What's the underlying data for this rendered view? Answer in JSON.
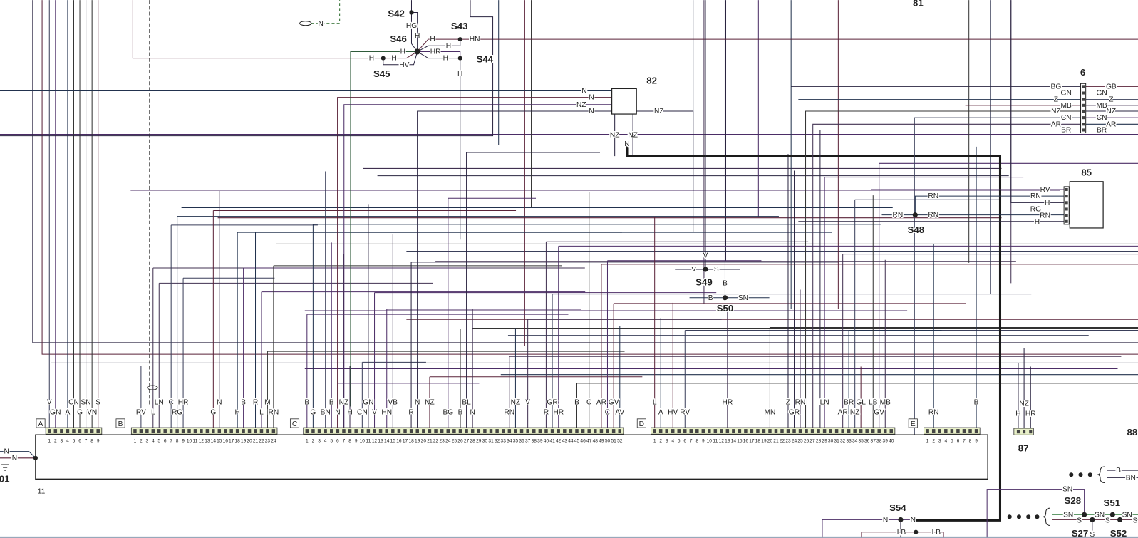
{
  "diagram": {
    "module_label": "11",
    "left_ref": "01",
    "top_ref": "81",
    "right_ref": "88",
    "left_wires": [
      "N",
      "N"
    ],
    "loop_wire": "N"
  },
  "connectors": [
    {
      "id": "A",
      "pin_count": 9,
      "wires": [
        {
          "pin": 1,
          "code": "V"
        },
        {
          "pin": 2,
          "code": "GN"
        },
        {
          "pin": 4,
          "code": "A"
        },
        {
          "pin": 5,
          "code": "CN"
        },
        {
          "pin": 6,
          "code": "G"
        },
        {
          "pin": 7,
          "code": "SN"
        },
        {
          "pin": 8,
          "code": "VN"
        },
        {
          "pin": 9,
          "code": "S"
        }
      ]
    },
    {
      "id": "B",
      "pin_count": 24,
      "wires": [
        {
          "pin": 2,
          "code": "RV"
        },
        {
          "pin": 4,
          "code": "L"
        },
        {
          "pin": 5,
          "code": "LN"
        },
        {
          "pin": 7,
          "code": "C"
        },
        {
          "pin": 8,
          "code": "RG"
        },
        {
          "pin": 9,
          "code": "HR"
        },
        {
          "pin": 14,
          "code": "G"
        },
        {
          "pin": 15,
          "code": "N"
        },
        {
          "pin": 18,
          "code": "H"
        },
        {
          "pin": 19,
          "code": "B"
        },
        {
          "pin": 21,
          "code": "R"
        },
        {
          "pin": 22,
          "code": "L"
        },
        {
          "pin": 23,
          "code": "M"
        },
        {
          "pin": 24,
          "code": "RN"
        }
      ]
    },
    {
      "id": "C",
      "pin_count": 52,
      "wires": [
        {
          "pin": 1,
          "code": "B"
        },
        {
          "pin": 2,
          "code": "G"
        },
        {
          "pin": 4,
          "code": "BN"
        },
        {
          "pin": 5,
          "code": "B"
        },
        {
          "pin": 6,
          "code": "N"
        },
        {
          "pin": 7,
          "code": "NZ"
        },
        {
          "pin": 8,
          "code": "H"
        },
        {
          "pin": 10,
          "code": "CN"
        },
        {
          "pin": 11,
          "code": "GN"
        },
        {
          "pin": 12,
          "code": "V"
        },
        {
          "pin": 14,
          "code": "HN"
        },
        {
          "pin": 15,
          "code": "VB"
        },
        {
          "pin": 18,
          "code": "R"
        },
        {
          "pin": 19,
          "code": "N"
        },
        {
          "pin": 21,
          "code": "NZ"
        },
        {
          "pin": 24,
          "code": "BG"
        },
        {
          "pin": 26,
          "code": "B"
        },
        {
          "pin": 27,
          "code": "BL"
        },
        {
          "pin": 28,
          "code": "N"
        },
        {
          "pin": 34,
          "code": "RN"
        },
        {
          "pin": 35,
          "code": "NZ"
        },
        {
          "pin": 37,
          "code": "V"
        },
        {
          "pin": 40,
          "code": "R"
        },
        {
          "pin": 41,
          "code": "GR"
        },
        {
          "pin": 42,
          "code": "HR"
        },
        {
          "pin": 45,
          "code": "B"
        },
        {
          "pin": 47,
          "code": "C"
        },
        {
          "pin": 49,
          "code": "AR"
        },
        {
          "pin": 50,
          "code": "C"
        },
        {
          "pin": 51,
          "code": "GV"
        },
        {
          "pin": 52,
          "code": "AV"
        }
      ]
    },
    {
      "id": "D",
      "pin_count": 40,
      "wires": [
        {
          "pin": 1,
          "code": "L"
        },
        {
          "pin": 2,
          "code": "A"
        },
        {
          "pin": 4,
          "code": "HV"
        },
        {
          "pin": 6,
          "code": "RV"
        },
        {
          "pin": 13,
          "code": "HR"
        },
        {
          "pin": 20,
          "code": "MN"
        },
        {
          "pin": 23,
          "code": "Z"
        },
        {
          "pin": 24,
          "code": "GR"
        },
        {
          "pin": 25,
          "code": "RN"
        },
        {
          "pin": 29,
          "code": "LN"
        },
        {
          "pin": 32,
          "code": "AR"
        },
        {
          "pin": 33,
          "code": "BR"
        },
        {
          "pin": 34,
          "code": "NZ"
        },
        {
          "pin": 35,
          "code": "GL"
        },
        {
          "pin": 37,
          "code": "LB"
        },
        {
          "pin": 38,
          "code": "GV"
        },
        {
          "pin": 39,
          "code": "MB"
        }
      ]
    },
    {
      "id": "E",
      "pin_count": 9,
      "wires": [
        {
          "pin": 2,
          "code": "RN"
        },
        {
          "pin": 9,
          "code": "B"
        }
      ]
    }
  ],
  "connector_87": {
    "label": "87",
    "wires": [
      "NZ",
      "H",
      "HR"
    ]
  },
  "component_82": {
    "label": "82",
    "wires": [
      "N",
      "N",
      "NZ",
      "N",
      "NZ",
      "NZ",
      "NZ",
      "N"
    ]
  },
  "connector_6": {
    "label": "6",
    "left_wires": [
      "BG",
      "GN",
      "Z",
      "MB",
      "NZ",
      "CN",
      "AR",
      "BR"
    ],
    "right_wires": [
      "GB",
      "GN",
      "Z",
      "MB",
      "NZ",
      "CN",
      "AR",
      "BR"
    ]
  },
  "component_85": {
    "label": "85",
    "wires": [
      "RV",
      "RN",
      "H",
      "RG",
      "RN",
      "H"
    ]
  },
  "splices": {
    "S42": "S42",
    "S43": "S43",
    "S44": "S44",
    "S45": "S45",
    "S46": "S46",
    "S48": "S48",
    "S49": "S49",
    "S50": "S50",
    "S54": "S54",
    "S28": "S28",
    "S27": "S27",
    "S51": "S51",
    "S52": "S52"
  },
  "top_junction_wires": [
    "HG",
    "H",
    "H",
    "H",
    "HN",
    "H",
    "HR",
    "H",
    "H",
    "HV",
    "H",
    "H"
  ],
  "s48_wires": [
    "RN",
    "RN",
    "RN"
  ],
  "s49_s50_wires": [
    "V",
    "V",
    "S",
    "B",
    "B",
    "SN"
  ],
  "s54_wires": [
    "N",
    "N",
    "LB",
    "LB"
  ],
  "bottom_right_wires": [
    "B",
    "BN",
    "SN",
    "SN",
    "SN",
    "SN",
    "S",
    "S",
    "S",
    "S"
  ],
  "colors": {
    "wire_dark": "#2a2440",
    "wire_purple": "#4b2d66",
    "wire_blue": "#22324e",
    "wire_red": "#5a2238",
    "harness": "#1a1a1a",
    "border": "#8a9bb0"
  }
}
